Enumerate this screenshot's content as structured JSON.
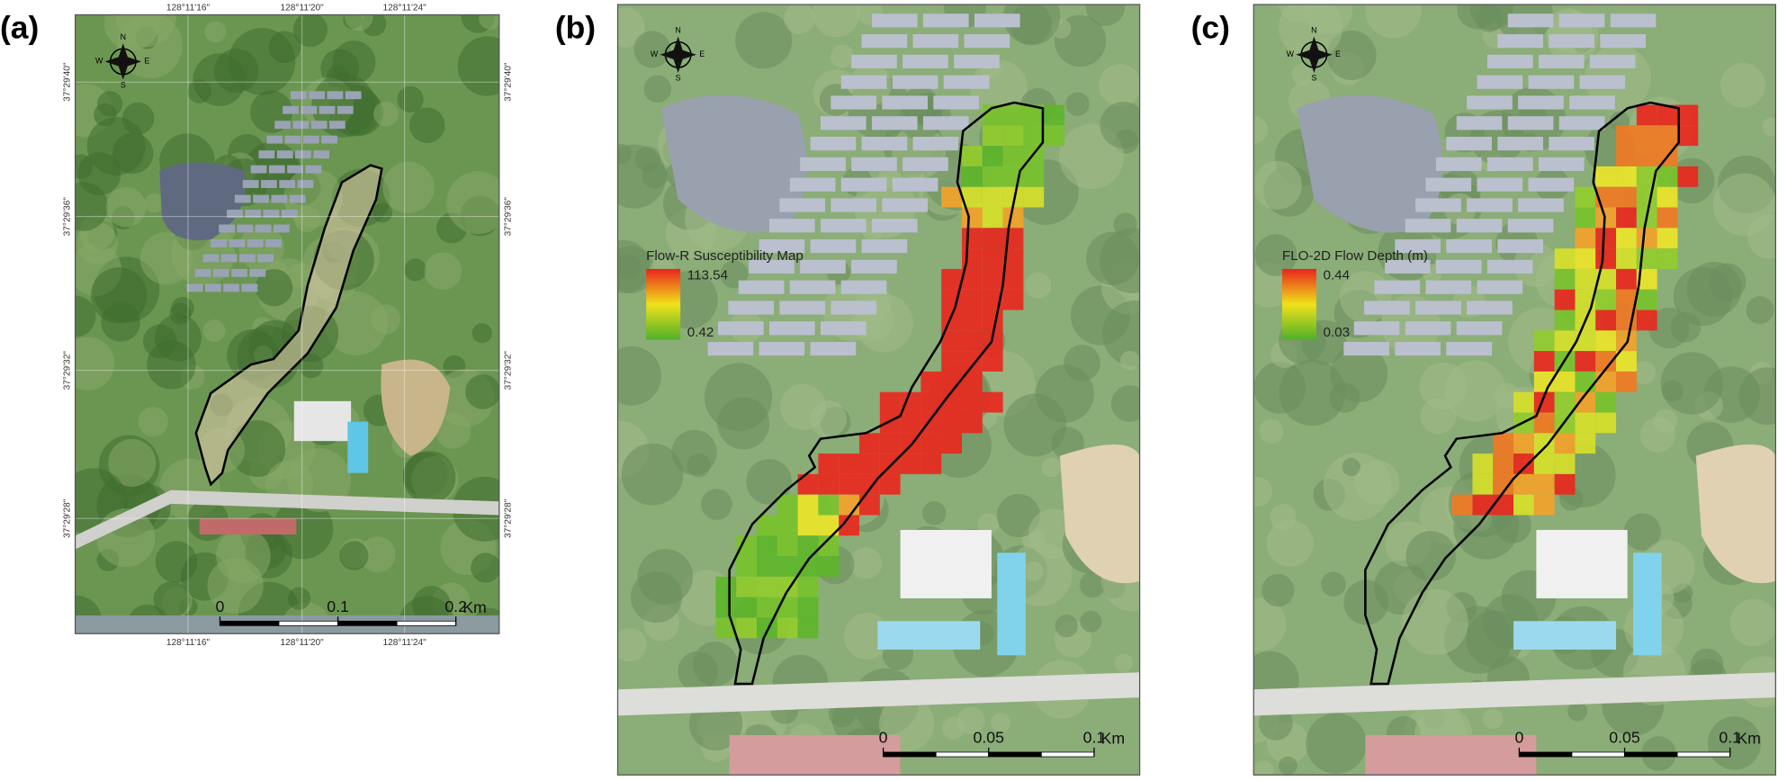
{
  "panels": [
    {
      "label": "(a)",
      "top_coordinates": [
        "128°11'16\"",
        "128°11'20\"",
        "128°11'24\""
      ],
      "bottom_coordinates": [
        "128°11'16\"",
        "128°11'20\"",
        "128°11'24\""
      ],
      "left_coordinates": [
        "37°29'40\"",
        "37°29'36\"",
        "37°29'32\"",
        "37°29'28\""
      ],
      "right_coordinates": [
        "37°29'40\"",
        "37°29'36\"",
        "37°29'32\"",
        "37°29'28\""
      ],
      "compass": [
        "N",
        "S",
        "E",
        "W"
      ],
      "scale_bar": {
        "ticks": [
          0,
          0.1,
          0.2
        ],
        "unit": "Km"
      }
    },
    {
      "label": "(b)",
      "compass": [
        "N",
        "S",
        "E",
        "W"
      ],
      "legend": {
        "title": "Flow-R Susceptibility Map",
        "max": 113.54,
        "min": 0.42
      },
      "scale_bar": {
        "ticks": [
          0,
          0.05,
          0.1
        ],
        "unit": "Km"
      }
    },
    {
      "label": "(c)",
      "compass": [
        "N",
        "S",
        "E",
        "W"
      ],
      "legend": {
        "title": "FLO-2D Flow Depth (m)",
        "max": 0.44,
        "min": 0.03
      },
      "scale_bar": {
        "ticks": [
          0,
          0.05,
          0.1
        ],
        "unit": "Km"
      }
    }
  ]
}
